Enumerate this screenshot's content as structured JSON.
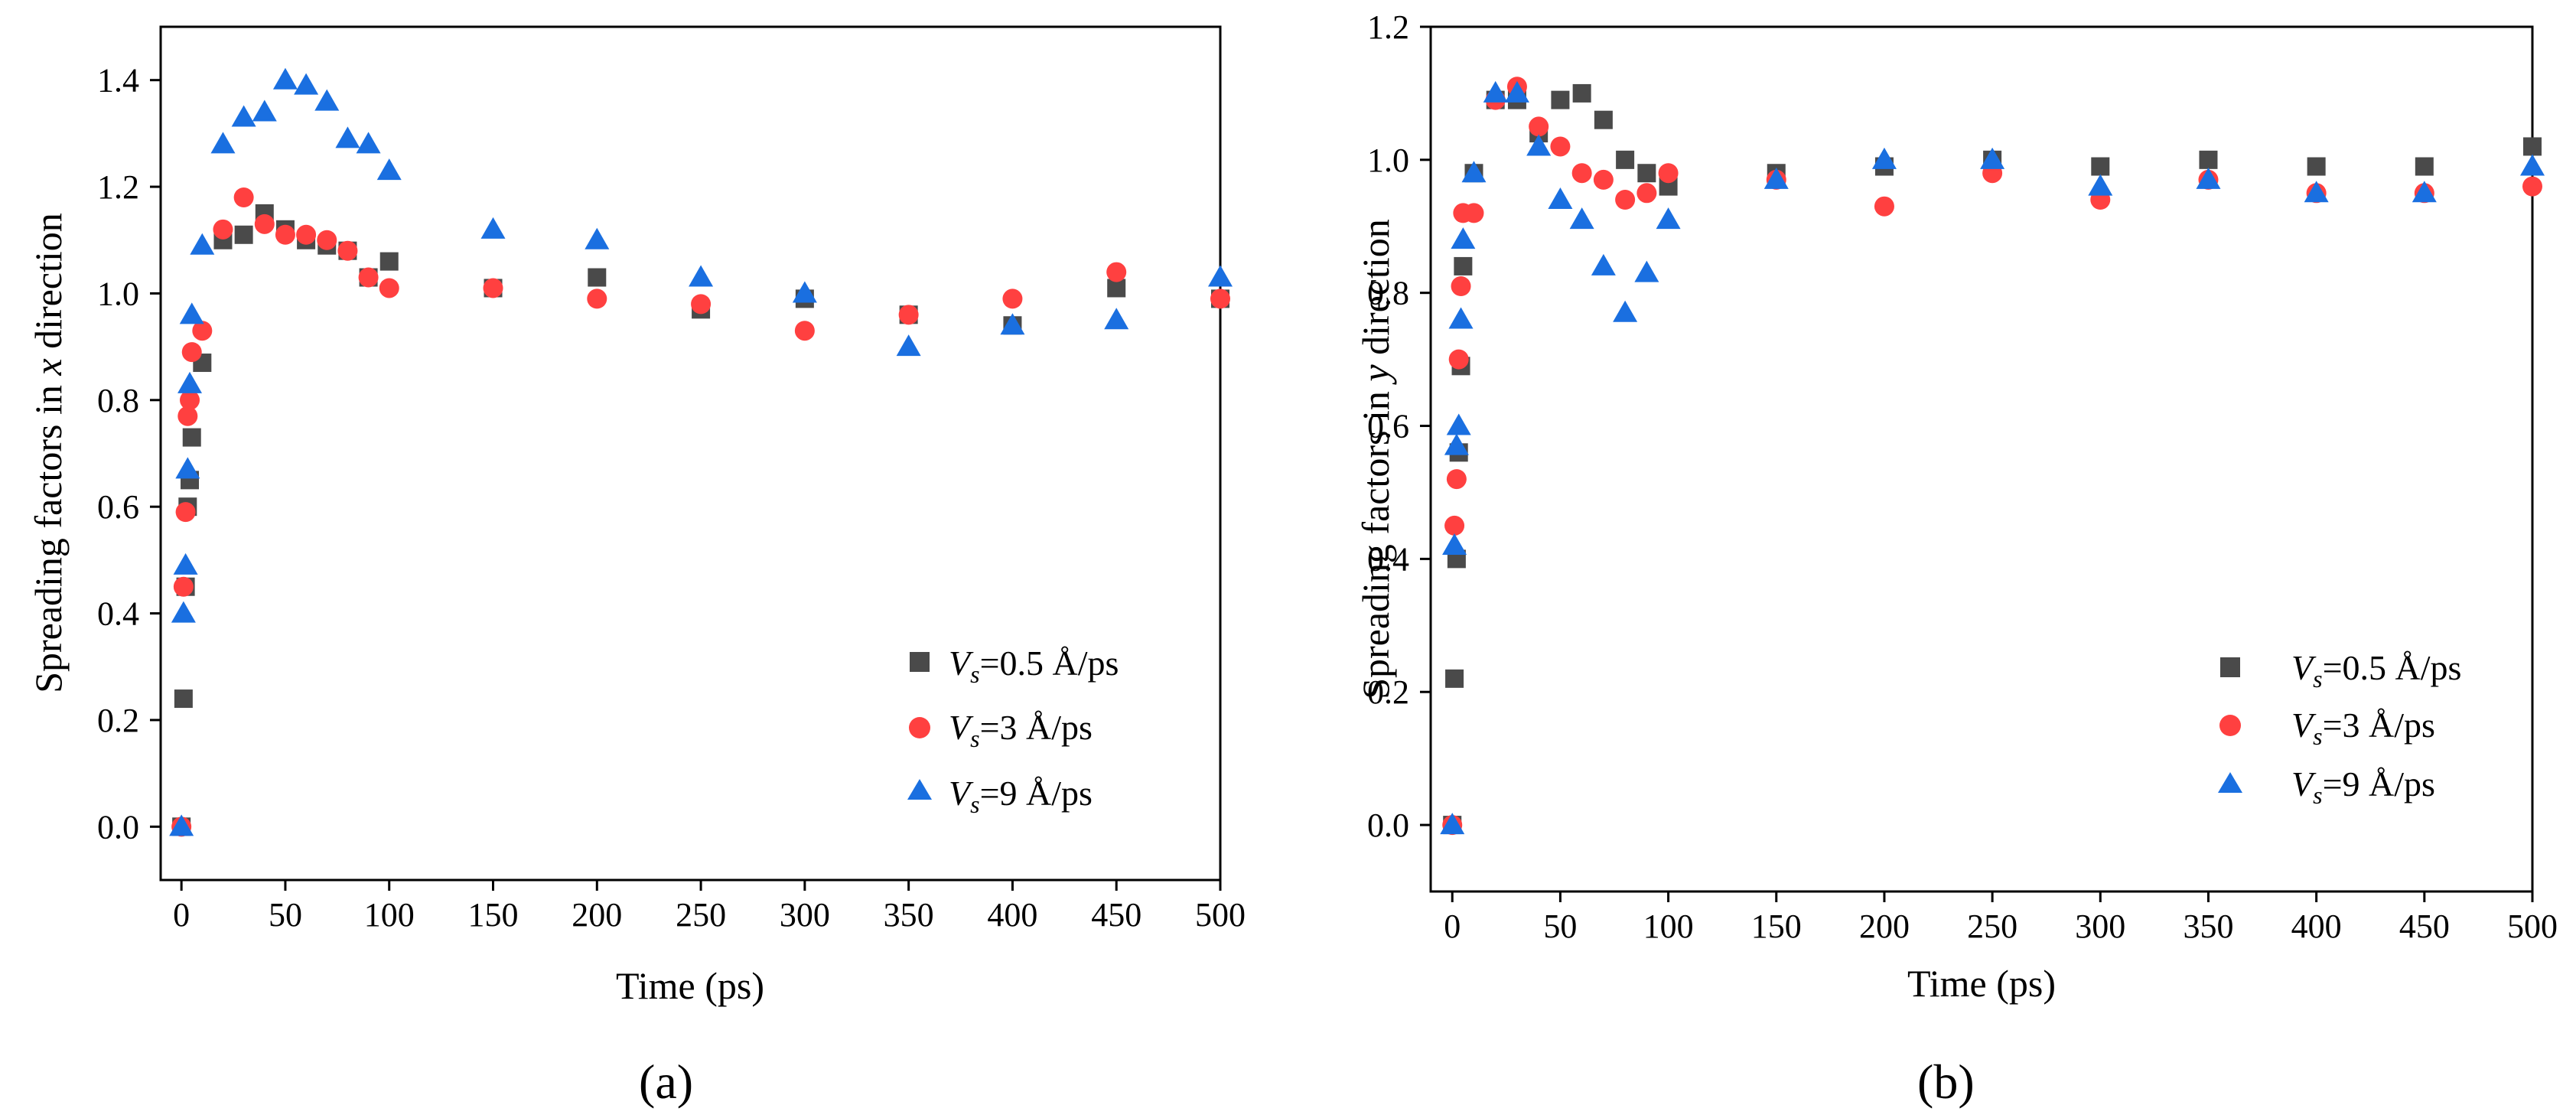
{
  "chart_data": [
    {
      "type": "scatter",
      "panel_label": "(a)",
      "xlabel": "Time (ps)",
      "ylabel_main": "Spreading factors in ",
      "ylabel_var": "x",
      "ylabel_tail": " direction",
      "xlim": [
        -10,
        500
      ],
      "ylim": [
        -0.1,
        1.5
      ],
      "xticks": [
        0,
        50,
        100,
        150,
        200,
        250,
        300,
        350,
        400,
        450,
        500
      ],
      "yticks": [
        0.0,
        0.2,
        0.4,
        0.6,
        0.8,
        1.0,
        1.2,
        1.4
      ],
      "xtick_labels": [
        "0",
        "50",
        "100",
        "150",
        "200",
        "250",
        "300",
        "350",
        "400",
        "450",
        "500"
      ],
      "ytick_labels": [
        "0.0",
        "0.2",
        "0.4",
        "0.6",
        "0.8",
        "1.0",
        "1.2",
        "1.4"
      ],
      "legend_position": "lower-right",
      "series": [
        {
          "name": "Vs=0.5 Å/ps",
          "sym": "V",
          "sub": "s",
          "val": "=0.5 Å/ps",
          "marker": "square",
          "color": "#4a4a4a",
          "x": [
            0,
            1,
            2,
            3,
            4,
            5,
            10,
            20,
            30,
            40,
            50,
            60,
            70,
            80,
            90,
            100,
            150,
            200,
            250,
            300,
            350,
            400,
            450,
            500
          ],
          "y": [
            0.0,
            0.24,
            0.45,
            0.6,
            0.65,
            0.73,
            0.87,
            1.1,
            1.11,
            1.15,
            1.12,
            1.1,
            1.09,
            1.08,
            1.03,
            1.06,
            1.01,
            1.03,
            0.97,
            0.99,
            0.96,
            0.94,
            1.01,
            0.99
          ]
        },
        {
          "name": "Vs=3 Å/ps",
          "sym": "V",
          "sub": "s",
          "val": "=3 Å/ps",
          "marker": "circle",
          "color": "#ff4040",
          "x": [
            0,
            1,
            2,
            3,
            4,
            5,
            10,
            20,
            30,
            40,
            50,
            60,
            70,
            80,
            90,
            100,
            150,
            200,
            250,
            300,
            350,
            400,
            450,
            500
          ],
          "y": [
            0.0,
            0.45,
            0.59,
            0.77,
            0.8,
            0.89,
            0.93,
            1.12,
            1.18,
            1.13,
            1.11,
            1.11,
            1.1,
            1.08,
            1.03,
            1.01,
            1.01,
            0.99,
            0.98,
            0.93,
            0.96,
            0.99,
            1.04,
            0.99
          ]
        },
        {
          "name": "Vs=9 Å/ps",
          "sym": "V",
          "sub": "s",
          "val": "=9 Å/ps",
          "marker": "triangle",
          "color": "#1a6fe0",
          "x": [
            0,
            1,
            2,
            3,
            4,
            5,
            10,
            20,
            30,
            40,
            50,
            60,
            70,
            80,
            90,
            100,
            150,
            200,
            250,
            300,
            350,
            400,
            450,
            500
          ],
          "y": [
            0.0,
            0.4,
            0.49,
            0.67,
            0.83,
            0.96,
            1.09,
            1.28,
            1.33,
            1.34,
            1.4,
            1.39,
            1.36,
            1.29,
            1.28,
            1.23,
            1.12,
            1.1,
            1.03,
            1.0,
            0.9,
            0.94,
            0.95,
            1.03
          ]
        }
      ]
    },
    {
      "type": "scatter",
      "panel_label": "(b)",
      "xlabel": "Time (ps)",
      "ylabel_main": "Spreading factors in ",
      "ylabel_var": "y",
      "ylabel_tail": " direction",
      "xlim": [
        -10,
        500
      ],
      "ylim": [
        -0.1,
        1.2
      ],
      "xticks": [
        0,
        50,
        100,
        150,
        200,
        250,
        300,
        350,
        400,
        450,
        500
      ],
      "yticks": [
        0.0,
        0.2,
        0.4,
        0.6,
        0.8,
        1.0,
        1.2
      ],
      "xtick_labels": [
        "0",
        "50",
        "100",
        "150",
        "200",
        "250",
        "300",
        "350",
        "400",
        "450",
        "500"
      ],
      "ytick_labels": [
        "0.0",
        "0.2",
        "0.4",
        "0.6",
        "0.8",
        "1.0",
        "1.2"
      ],
      "legend_position": "lower-right",
      "series": [
        {
          "name": "Vs=0.5 Å/ps",
          "sym": "V",
          "sub": "s",
          "val": "=0.5 Å/ps",
          "marker": "square",
          "color": "#4a4a4a",
          "x": [
            0,
            1,
            2,
            3,
            4,
            5,
            10,
            20,
            30,
            40,
            50,
            60,
            70,
            80,
            90,
            100,
            150,
            200,
            250,
            300,
            350,
            400,
            450,
            500
          ],
          "y": [
            0.0,
            0.22,
            0.4,
            0.56,
            0.69,
            0.84,
            0.98,
            1.09,
            1.09,
            1.04,
            1.09,
            1.1,
            1.06,
            1.0,
            0.98,
            0.96,
            0.98,
            0.99,
            1.0,
            0.99,
            1.0,
            0.99,
            0.99,
            1.02
          ]
        },
        {
          "name": "Vs=3 Å/ps",
          "sym": "V",
          "sub": "s",
          "val": "=3 Å/ps",
          "marker": "circle",
          "color": "#ff4040",
          "x": [
            0,
            1,
            2,
            3,
            4,
            5,
            10,
            20,
            30,
            40,
            50,
            60,
            70,
            80,
            90,
            100,
            150,
            200,
            250,
            300,
            350,
            400,
            450,
            500
          ],
          "y": [
            0.0,
            0.45,
            0.52,
            0.7,
            0.81,
            0.92,
            0.92,
            1.09,
            1.11,
            1.05,
            1.02,
            0.98,
            0.97,
            0.94,
            0.95,
            0.98,
            0.97,
            0.93,
            0.98,
            0.94,
            0.97,
            0.95,
            0.95,
            0.96
          ]
        },
        {
          "name": "Vs=9 Å/ps",
          "sym": "V",
          "sub": "s",
          "val": "=9 Å/ps",
          "marker": "triangle",
          "color": "#1a6fe0",
          "x": [
            0,
            1,
            2,
            3,
            4,
            5,
            10,
            20,
            30,
            40,
            50,
            60,
            70,
            80,
            90,
            100,
            150,
            200,
            250,
            300,
            350,
            400,
            450,
            500
          ],
          "y": [
            0.0,
            0.42,
            0.57,
            0.6,
            0.76,
            0.88,
            0.98,
            1.1,
            1.1,
            1.02,
            0.94,
            0.91,
            0.84,
            0.77,
            0.83,
            0.91,
            0.97,
            1.0,
            1.0,
            0.96,
            0.97,
            0.95,
            0.95,
            0.99
          ]
        }
      ]
    }
  ]
}
